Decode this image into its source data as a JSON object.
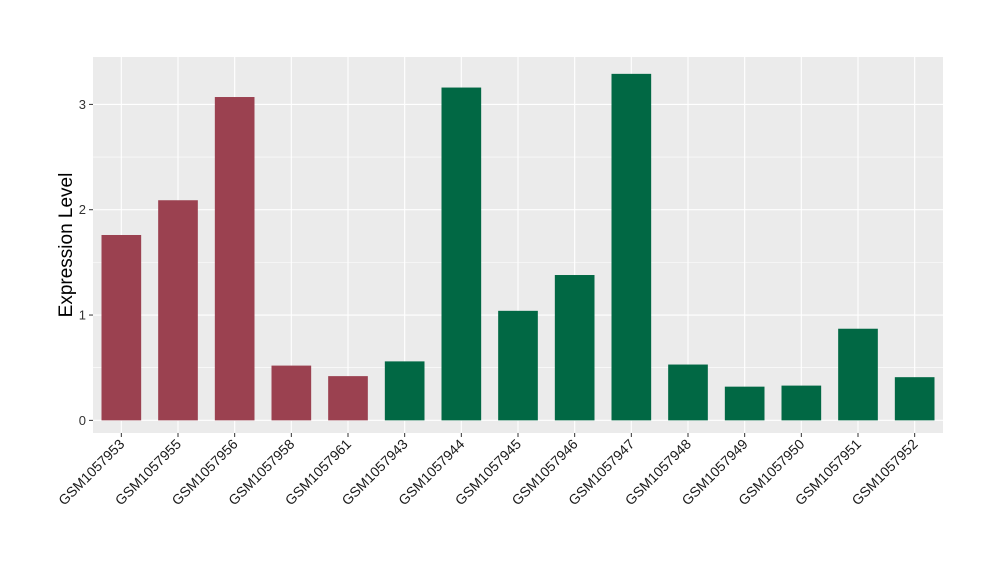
{
  "chart_data": {
    "type": "bar",
    "title": "",
    "xlabel": "",
    "ylabel": "Expression Level",
    "ylim": [
      -0.12,
      3.45
    ],
    "yticks": [
      0,
      1,
      2,
      3
    ],
    "grid": true,
    "legend": "none",
    "categories": [
      "GSM1057953",
      "GSM1057955",
      "GSM1057956",
      "GSM1057958",
      "GSM1057961",
      "GSM1057943",
      "GSM1057944",
      "GSM1057945",
      "GSM1057946",
      "GSM1057947",
      "GSM1057948",
      "GSM1057949",
      "GSM1057950",
      "GSM1057951",
      "GSM1057952"
    ],
    "values": [
      1.76,
      2.09,
      3.07,
      0.52,
      0.42,
      0.56,
      3.16,
      1.04,
      1.38,
      3.29,
      0.53,
      0.32,
      0.33,
      0.87,
      0.41
    ],
    "bar_colors": [
      "#9b4150",
      "#9b4150",
      "#9b4150",
      "#9b4150",
      "#9b4150",
      "#016844",
      "#016844",
      "#016844",
      "#016844",
      "#016844",
      "#016844",
      "#016844",
      "#016844",
      "#016844",
      "#016844"
    ],
    "panel_background": "#ebebeb",
    "grid_color": "#ffffff"
  }
}
